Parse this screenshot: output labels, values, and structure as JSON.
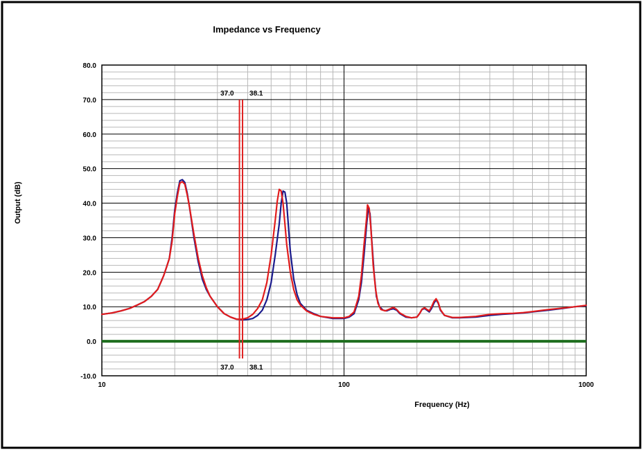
{
  "chart_data": {
    "type": "line",
    "title": "Impedance vs Frequency",
    "xlabel": "Frequency (Hz)",
    "ylabel": "Output (dB)",
    "xscale": "log",
    "xlim": [
      10,
      1000
    ],
    "ylim": [
      -10,
      80
    ],
    "grid": true,
    "legend": "none",
    "x_ticks": [
      {
        "value": 10,
        "label": "10"
      },
      {
        "value": 100,
        "label": "100"
      },
      {
        "value": 1000,
        "label": "1000"
      }
    ],
    "y_ticks": [
      {
        "value": -10,
        "label": "-10.0"
      },
      {
        "value": 0,
        "label": "0.0"
      },
      {
        "value": 10,
        "label": "10.0"
      },
      {
        "value": 20,
        "label": "20.0"
      },
      {
        "value": 30,
        "label": "30.0"
      },
      {
        "value": 40,
        "label": "40.0"
      },
      {
        "value": 50,
        "label": "50.0"
      },
      {
        "value": 60,
        "label": "60.0"
      },
      {
        "value": 70,
        "label": "70.0"
      },
      {
        "value": 80,
        "label": "80.0"
      }
    ],
    "markers": [
      {
        "x": 37.0,
        "label": "37.0",
        "ymin": -5,
        "ymax": 70,
        "color": "#e02020"
      },
      {
        "x": 38.1,
        "label": "38.1",
        "ymin": -5,
        "ymax": 70,
        "color": "#e02020"
      }
    ],
    "baseline": {
      "y": 0,
      "color": "#1e6e1e"
    },
    "series": [
      {
        "color": "#1a1a8c",
        "points": [
          [
            10,
            7.8
          ],
          [
            11,
            8.2
          ],
          [
            12,
            8.8
          ],
          [
            13,
            9.5
          ],
          [
            14,
            10.5
          ],
          [
            15,
            11.5
          ],
          [
            16,
            13
          ],
          [
            17,
            15
          ],
          [
            17.5,
            17
          ],
          [
            18,
            19
          ],
          [
            18.5,
            21.5
          ],
          [
            19,
            24
          ],
          [
            19.5,
            30
          ],
          [
            20,
            38
          ],
          [
            20.5,
            43
          ],
          [
            21,
            46.5
          ],
          [
            21.5,
            46.8
          ],
          [
            22,
            46
          ],
          [
            22.5,
            43
          ],
          [
            23,
            39
          ],
          [
            24,
            30
          ],
          [
            25,
            23
          ],
          [
            26,
            18
          ],
          [
            27,
            15
          ],
          [
            28,
            13
          ],
          [
            30,
            10
          ],
          [
            32,
            8
          ],
          [
            34,
            7
          ],
          [
            36,
            6.4
          ],
          [
            38,
            6.2
          ],
          [
            40,
            6.3
          ],
          [
            42,
            6.6
          ],
          [
            44,
            7.5
          ],
          [
            46,
            9
          ],
          [
            48,
            12
          ],
          [
            50,
            17
          ],
          [
            52,
            25
          ],
          [
            54,
            34
          ],
          [
            55,
            40
          ],
          [
            56,
            43.5
          ],
          [
            57,
            43.2
          ],
          [
            58,
            40
          ],
          [
            59,
            33
          ],
          [
            60,
            26
          ],
          [
            62,
            18
          ],
          [
            64,
            13.5
          ],
          [
            66,
            11
          ],
          [
            70,
            9
          ],
          [
            75,
            8
          ],
          [
            80,
            7.2
          ],
          [
            90,
            6.6
          ],
          [
            100,
            6.6
          ],
          [
            105,
            7
          ],
          [
            110,
            8
          ],
          [
            115,
            12
          ],
          [
            118,
            17
          ],
          [
            121,
            25
          ],
          [
            124,
            34
          ],
          [
            126,
            38.5
          ],
          [
            128,
            37
          ],
          [
            130,
            30
          ],
          [
            133,
            20
          ],
          [
            136,
            13
          ],
          [
            140,
            10
          ],
          [
            145,
            9
          ],
          [
            150,
            8.8
          ],
          [
            155,
            9.2
          ],
          [
            160,
            9.4
          ],
          [
            165,
            9
          ],
          [
            170,
            8
          ],
          [
            180,
            7
          ],
          [
            190,
            6.8
          ],
          [
            200,
            7
          ],
          [
            205,
            8
          ],
          [
            210,
            9.2
          ],
          [
            215,
            9.5
          ],
          [
            220,
            9
          ],
          [
            225,
            8.5
          ],
          [
            230,
            9.5
          ],
          [
            235,
            11
          ],
          [
            240,
            12
          ],
          [
            245,
            11
          ],
          [
            250,
            9
          ],
          [
            260,
            7.5
          ],
          [
            280,
            6.8
          ],
          [
            300,
            6.8
          ],
          [
            350,
            7
          ],
          [
            400,
            7.5
          ],
          [
            450,
            7.8
          ],
          [
            500,
            8
          ],
          [
            550,
            8.2
          ],
          [
            600,
            8.5
          ],
          [
            700,
            9
          ],
          [
            800,
            9.5
          ],
          [
            900,
            10
          ],
          [
            1000,
            10.3
          ]
        ]
      },
      {
        "color": "#e21c1c",
        "points": [
          [
            10,
            7.8
          ],
          [
            11,
            8.2
          ],
          [
            12,
            8.8
          ],
          [
            13,
            9.5
          ],
          [
            14,
            10.5
          ],
          [
            15,
            11.5
          ],
          [
            16,
            13
          ],
          [
            17,
            15
          ],
          [
            17.5,
            17
          ],
          [
            18,
            19
          ],
          [
            18.5,
            21.5
          ],
          [
            19,
            24
          ],
          [
            19.5,
            29
          ],
          [
            20,
            37
          ],
          [
            20.5,
            42
          ],
          [
            21,
            45.8
          ],
          [
            21.5,
            46.2
          ],
          [
            22,
            45.5
          ],
          [
            22.5,
            42.5
          ],
          [
            23,
            39
          ],
          [
            24,
            31
          ],
          [
            25,
            24
          ],
          [
            26,
            19
          ],
          [
            27,
            15.5
          ],
          [
            28,
            13
          ],
          [
            30,
            10
          ],
          [
            32,
            8
          ],
          [
            34,
            7
          ],
          [
            36,
            6.4
          ],
          [
            38,
            6.4
          ],
          [
            40,
            6.8
          ],
          [
            42,
            7.8
          ],
          [
            44,
            9.5
          ],
          [
            46,
            12
          ],
          [
            48,
            17
          ],
          [
            50,
            25
          ],
          [
            52,
            35
          ],
          [
            53,
            40.5
          ],
          [
            54,
            44
          ],
          [
            55,
            43.5
          ],
          [
            56,
            40
          ],
          [
            57,
            34
          ],
          [
            58,
            28
          ],
          [
            60,
            20
          ],
          [
            62,
            15
          ],
          [
            64,
            12
          ],
          [
            66,
            10.5
          ],
          [
            70,
            8.8
          ],
          [
            75,
            7.8
          ],
          [
            80,
            7.2
          ],
          [
            90,
            6.8
          ],
          [
            100,
            6.8
          ],
          [
            105,
            7.2
          ],
          [
            110,
            8.5
          ],
          [
            115,
            13
          ],
          [
            118,
            19
          ],
          [
            121,
            28
          ],
          [
            124,
            36
          ],
          [
            125,
            39.5
          ],
          [
            127,
            38.5
          ],
          [
            129,
            33
          ],
          [
            132,
            22
          ],
          [
            135,
            15
          ],
          [
            138,
            11
          ],
          [
            142,
            9.2
          ],
          [
            148,
            8.8
          ],
          [
            155,
            9.4
          ],
          [
            160,
            9.8
          ],
          [
            165,
            9.2
          ],
          [
            170,
            8.2
          ],
          [
            180,
            7.2
          ],
          [
            190,
            6.8
          ],
          [
            200,
            7
          ],
          [
            205,
            8
          ],
          [
            210,
            9.3
          ],
          [
            215,
            9.7
          ],
          [
            220,
            9.2
          ],
          [
            225,
            8.8
          ],
          [
            230,
            10
          ],
          [
            235,
            11.5
          ],
          [
            240,
            12.3
          ],
          [
            245,
            11.2
          ],
          [
            250,
            9.2
          ],
          [
            260,
            7.5
          ],
          [
            280,
            6.9
          ],
          [
            300,
            6.9
          ],
          [
            350,
            7.2
          ],
          [
            400,
            7.8
          ],
          [
            450,
            8
          ],
          [
            500,
            8.1
          ],
          [
            550,
            8.3
          ],
          [
            600,
            8.6
          ],
          [
            700,
            9.2
          ],
          [
            800,
            9.6
          ],
          [
            900,
            10
          ],
          [
            1000,
            10.4
          ]
        ]
      }
    ]
  }
}
